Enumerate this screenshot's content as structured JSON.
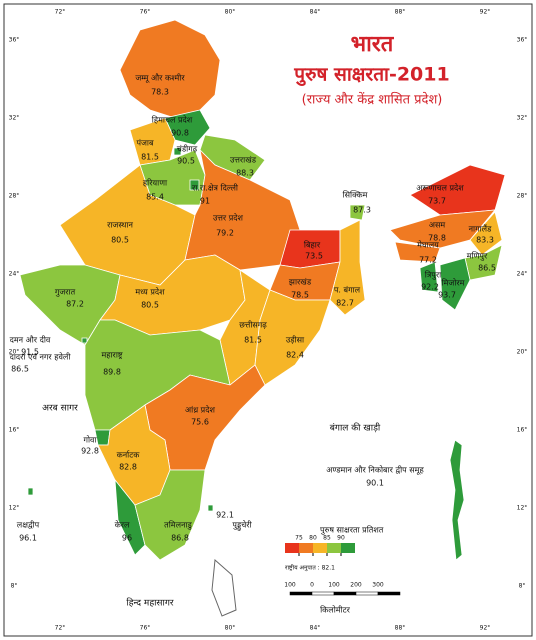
{
  "map": {
    "title": "भारत",
    "subtitle": "पुरुष साक्षरता-2011",
    "note": "(राज्य और केंद्र शासित प्रदेश)",
    "states": [
      {
        "name": "जम्मू और कश्मीर",
        "value": 78.3
      },
      {
        "name": "हिमाचल प्रदेश",
        "value": 90.8
      },
      {
        "name": "पंजाब",
        "value": 81.5
      },
      {
        "name": "चंडीगढ़",
        "value": 90.5
      },
      {
        "name": "उत्तराखंड",
        "value": 88.3
      },
      {
        "name": "हरियाणा",
        "value": 85.4
      },
      {
        "name": "रा.रा.क्षेत्र दिल्ली",
        "value": 91.0
      },
      {
        "name": "राजस्थान",
        "value": 80.5
      },
      {
        "name": "उत्तर प्रदेश",
        "value": 79.2
      },
      {
        "name": "सिक्किम",
        "value": 87.3
      },
      {
        "name": "अरूणाचल प्रदेश",
        "value": 73.7
      },
      {
        "name": "बिहार",
        "value": 73.5
      },
      {
        "name": "असम",
        "value": 78.8
      },
      {
        "name": "नागालैंड",
        "value": 83.3
      },
      {
        "name": "मेघालय",
        "value": 77.2
      },
      {
        "name": "मणिपुर",
        "value": 86.5
      },
      {
        "name": "गुजरात",
        "value": 87.2
      },
      {
        "name": "झारखंड",
        "value": 78.5
      },
      {
        "name": "प. बंगाल",
        "value": 82.7
      },
      {
        "name": "त्रिपुरा",
        "value": 92.2
      },
      {
        "name": "मिजोरम",
        "value": 93.7
      },
      {
        "name": "मध्य प्रदेश",
        "value": 80.5
      },
      {
        "name": "छत्तीसगढ़",
        "value": 81.5
      },
      {
        "name": "उड़ीसा",
        "value": 82.4
      },
      {
        "name": "दमन और दीव",
        "value": 91.5
      },
      {
        "name": "दादरा एवं नगर हवेली",
        "value": 86.5
      },
      {
        "name": "महाराष्ट्र",
        "value": 89.8
      },
      {
        "name": "आंध्र प्रदेश",
        "value": 75.6
      },
      {
        "name": "गोवा",
        "value": 92.8
      },
      {
        "name": "कर्नाटक",
        "value": 82.8
      },
      {
        "name": "अण्डमान और निकोबार द्वीप समूह",
        "value": 90.1
      },
      {
        "name": "लक्षद्वीप",
        "value": 96.1
      },
      {
        "name": "केरल",
        "value": 96.0
      },
      {
        "name": "तमिलनाडु",
        "value": 86.8
      },
      {
        "name": "पुड्डुचेरी",
        "value": 92.1
      }
    ],
    "seas": [
      "अरब सागर",
      "बंगाल की खाड़ी",
      "हिन्द महासागर"
    ],
    "legend": {
      "title": "पुरुष साक्षरता प्रतिशत",
      "ticks": [
        75,
        80,
        85,
        90
      ],
      "colors": [
        "#e8341c",
        "#f07a22",
        "#f6b527",
        "#8cc63f",
        "#2e9b3a"
      ],
      "national": "राष्ट्रीय अनुपात : 82.1"
    },
    "scale": {
      "label": "किलोमीटर",
      "ticks": [
        "100",
        "0",
        "100",
        "200",
        "300"
      ]
    },
    "longitudes": [
      "72°",
      "76°",
      "80°",
      "84°",
      "88°",
      "92°"
    ],
    "latitudes": [
      "36°",
      "32°",
      "28°",
      "24°",
      "20°",
      "16°",
      "12°",
      "8°"
    ]
  }
}
